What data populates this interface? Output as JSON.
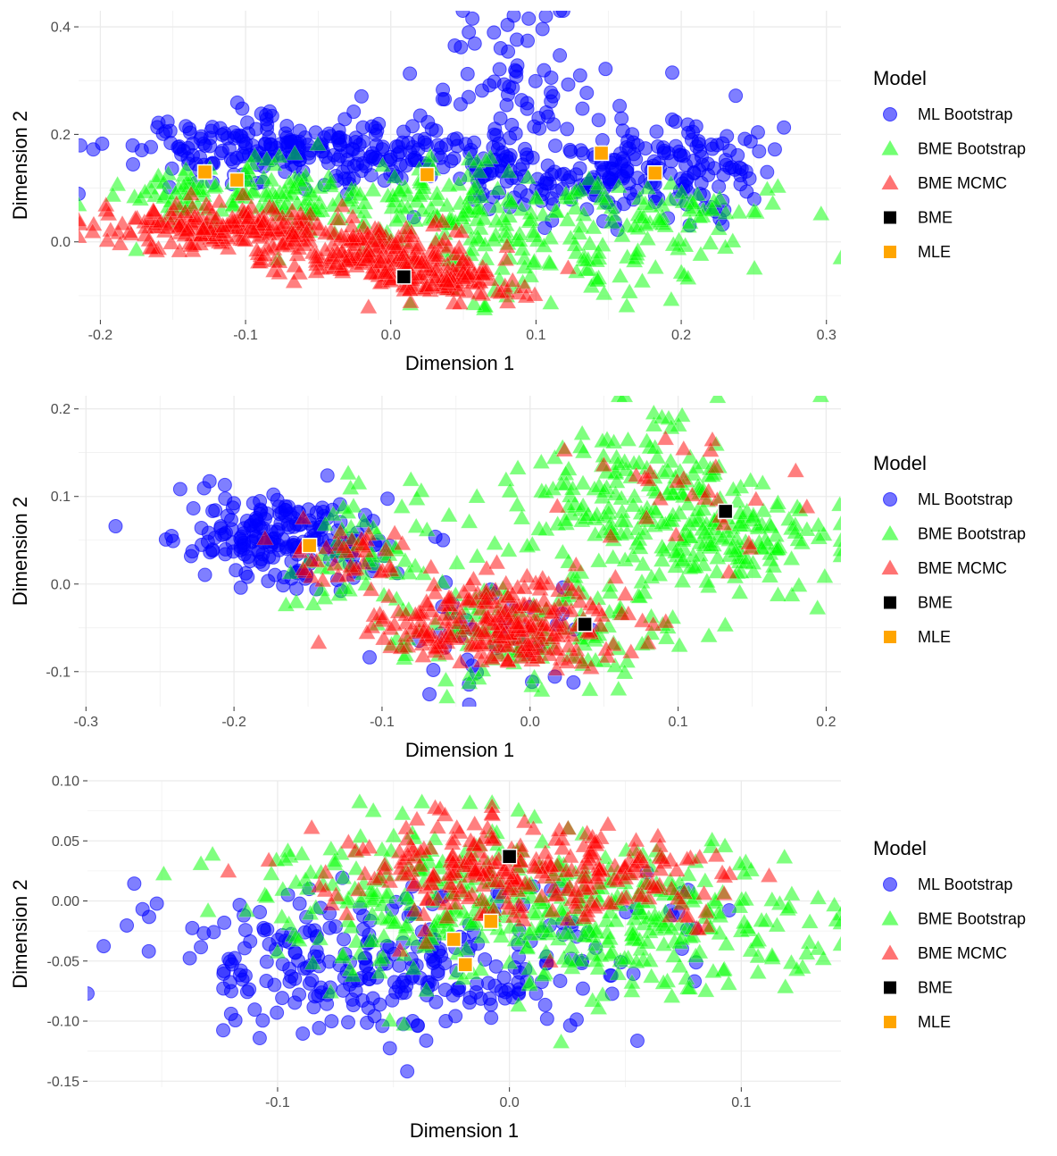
{
  "chart_data": [
    {
      "type": "scatter",
      "panel": 1,
      "xlabel": "Dimension 1",
      "ylabel": "Dimension 2",
      "xlim": [
        -0.215,
        0.31
      ],
      "ylim": [
        -0.145,
        0.43
      ],
      "xticks": [
        -0.2,
        -0.1,
        0.0,
        0.1,
        0.2,
        0.3
      ],
      "xtick_labels": [
        "-0.2",
        "-0.1",
        "0.0",
        "0.1",
        "0.2",
        "0.3"
      ],
      "yticks": [
        0.0,
        0.2,
        0.4
      ],
      "ytick_labels": [
        "0.0",
        "0.2",
        "0.4"
      ],
      "grid": true,
      "legend_title": "Model",
      "series": [
        {
          "name": "ML Bootstrap",
          "marker": "circle",
          "color": "#0000FF",
          "clusters": [
            {
              "cx": -0.1,
              "cy": 0.17,
              "sx": 0.045,
              "sy": 0.03,
              "n": 160
            },
            {
              "cx": 0.0,
              "cy": 0.16,
              "sx": 0.045,
              "sy": 0.03,
              "n": 110
            },
            {
              "cx": 0.08,
              "cy": 0.3,
              "sx": 0.03,
              "sy": 0.07,
              "n": 70
            },
            {
              "cx": 0.19,
              "cy": 0.14,
              "sx": 0.04,
              "sy": 0.05,
              "n": 160
            },
            {
              "cx": 0.1,
              "cy": 0.12,
              "sx": 0.04,
              "sy": 0.04,
              "n": 80
            }
          ]
        },
        {
          "name": "BME Bootstrap",
          "marker": "triangle",
          "color": "#00FF00",
          "clusters": [
            {
              "cx": -0.1,
              "cy": 0.09,
              "sx": 0.05,
              "sy": 0.03,
              "n": 120
            },
            {
              "cx": 0.03,
              "cy": 0.07,
              "sx": 0.05,
              "sy": 0.04,
              "n": 120
            },
            {
              "cx": 0.11,
              "cy": -0.02,
              "sx": 0.05,
              "sy": 0.05,
              "n": 100
            },
            {
              "cx": 0.2,
              "cy": 0.05,
              "sx": 0.04,
              "sy": 0.04,
              "n": 60
            }
          ]
        },
        {
          "name": "BME MCMC",
          "marker": "triangle",
          "color": "#FF0000",
          "clusters": [
            {
              "cx": -0.12,
              "cy": 0.03,
              "sx": 0.045,
              "sy": 0.02,
              "n": 200
            },
            {
              "cx": -0.02,
              "cy": -0.02,
              "sx": 0.04,
              "sy": 0.025,
              "n": 180
            },
            {
              "cx": 0.04,
              "cy": -0.07,
              "sx": 0.025,
              "sy": 0.018,
              "n": 120
            }
          ]
        },
        {
          "name": "BME",
          "marker": "square",
          "color": "#000000",
          "points": [
            [
              0.009,
              -0.065
            ]
          ]
        },
        {
          "name": "MLE",
          "marker": "square",
          "color": "#FFA500",
          "points": [
            [
              -0.128,
              0.13
            ],
            [
              -0.106,
              0.115
            ],
            [
              0.025,
              0.125
            ],
            [
              0.145,
              0.165
            ],
            [
              0.182,
              0.128
            ]
          ]
        }
      ]
    },
    {
      "type": "scatter",
      "panel": 2,
      "xlabel": "Dimension 1",
      "ylabel": "Dimension 2",
      "xlim": [
        -0.305,
        0.21
      ],
      "ylim": [
        -0.14,
        0.215
      ],
      "xticks": [
        -0.3,
        -0.2,
        -0.1,
        0.0,
        0.1,
        0.2
      ],
      "xtick_labels": [
        "-0.3",
        "-0.2",
        "-0.1",
        "0.0",
        "0.1",
        "0.2"
      ],
      "yticks": [
        -0.1,
        0.0,
        0.1,
        0.2
      ],
      "ytick_labels": [
        "-0.1",
        "0.0",
        "0.1",
        "0.2"
      ],
      "grid": true,
      "legend_title": "Model",
      "series": [
        {
          "name": "ML Bootstrap",
          "marker": "circle",
          "color": "#0000FF",
          "clusters": [
            {
              "cx": -0.18,
              "cy": 0.055,
              "sx": 0.025,
              "sy": 0.025,
              "n": 150
            },
            {
              "cx": -0.13,
              "cy": 0.04,
              "sx": 0.025,
              "sy": 0.03,
              "n": 60
            },
            {
              "cx": -0.03,
              "cy": -0.06,
              "sx": 0.03,
              "sy": 0.03,
              "n": 40
            }
          ],
          "points": [
            [
              -0.28,
              0.066
            ]
          ]
        },
        {
          "name": "BME Bootstrap",
          "marker": "triangle",
          "color": "#00FF00",
          "clusters": [
            {
              "cx": -0.11,
              "cy": 0.05,
              "sx": 0.025,
              "sy": 0.035,
              "n": 60
            },
            {
              "cx": 0.0,
              "cy": -0.05,
              "sx": 0.05,
              "sy": 0.035,
              "n": 140
            },
            {
              "cx": 0.08,
              "cy": 0.1,
              "sx": 0.04,
              "sy": 0.05,
              "n": 180
            },
            {
              "cx": 0.14,
              "cy": 0.05,
              "sx": 0.035,
              "sy": 0.035,
              "n": 120
            }
          ]
        },
        {
          "name": "BME MCMC",
          "marker": "triangle",
          "color": "#FF0000",
          "clusters": [
            {
              "cx": -0.02,
              "cy": -0.045,
              "sx": 0.04,
              "sy": 0.025,
              "n": 260
            },
            {
              "cx": -0.125,
              "cy": 0.035,
              "sx": 0.025,
              "sy": 0.02,
              "n": 40
            },
            {
              "cx": 0.11,
              "cy": 0.09,
              "sx": 0.03,
              "sy": 0.04,
              "n": 30
            }
          ]
        },
        {
          "name": "BME",
          "marker": "square",
          "color": "#000000",
          "points": [
            [
              0.132,
              0.083
            ],
            [
              0.037,
              -0.046
            ]
          ]
        },
        {
          "name": "MLE",
          "marker": "square",
          "color": "#FFA500",
          "points": [
            [
              -0.149,
              0.044
            ]
          ]
        }
      ]
    },
    {
      "type": "scatter",
      "panel": 3,
      "xlabel": "Dimension 1",
      "ylabel": "Dimension 2",
      "xlim": [
        -0.182,
        0.143
      ],
      "ylim": [
        -0.155,
        0.1
      ],
      "xticks": [
        -0.1,
        0.0,
        0.1
      ],
      "xtick_labels": [
        "-0.1",
        "0.0",
        "0.1"
      ],
      "yticks": [
        -0.15,
        -0.1,
        -0.05,
        0.0,
        0.05,
        0.1
      ],
      "ytick_labels": [
        "-0.15",
        "-0.10",
        "-0.05",
        "0.00",
        "0.05",
        "0.10"
      ],
      "grid": true,
      "legend_title": "Model",
      "series": [
        {
          "name": "ML Bootstrap",
          "marker": "circle",
          "color": "#0000FF",
          "clusters": [
            {
              "cx": -0.08,
              "cy": -0.05,
              "sx": 0.04,
              "sy": 0.03,
              "n": 180
            },
            {
              "cx": -0.02,
              "cy": -0.06,
              "sx": 0.03,
              "sy": 0.025,
              "n": 80
            },
            {
              "cx": 0.03,
              "cy": -0.04,
              "sx": 0.03,
              "sy": 0.03,
              "n": 40
            }
          ]
        },
        {
          "name": "BME Bootstrap",
          "marker": "triangle",
          "color": "#00FF00",
          "clusters": [
            {
              "cx": -0.03,
              "cy": 0.0,
              "sx": 0.04,
              "sy": 0.035,
              "n": 250
            },
            {
              "cx": 0.06,
              "cy": -0.02,
              "sx": 0.04,
              "sy": 0.03,
              "n": 220
            }
          ]
        },
        {
          "name": "BME MCMC",
          "marker": "triangle",
          "color": "#FF0000",
          "clusters": [
            {
              "cx": -0.02,
              "cy": 0.025,
              "sx": 0.03,
              "sy": 0.02,
              "n": 160
            },
            {
              "cx": 0.04,
              "cy": 0.02,
              "sx": 0.03,
              "sy": 0.02,
              "n": 130
            }
          ]
        },
        {
          "name": "BME",
          "marker": "square",
          "color": "#000000",
          "points": [
            [
              0.0,
              0.037
            ]
          ]
        },
        {
          "name": "MLE",
          "marker": "square",
          "color": "#FFA500",
          "points": [
            [
              -0.024,
              -0.032
            ],
            [
              -0.008,
              -0.017
            ],
            [
              -0.019,
              -0.053
            ]
          ]
        }
      ]
    }
  ]
}
